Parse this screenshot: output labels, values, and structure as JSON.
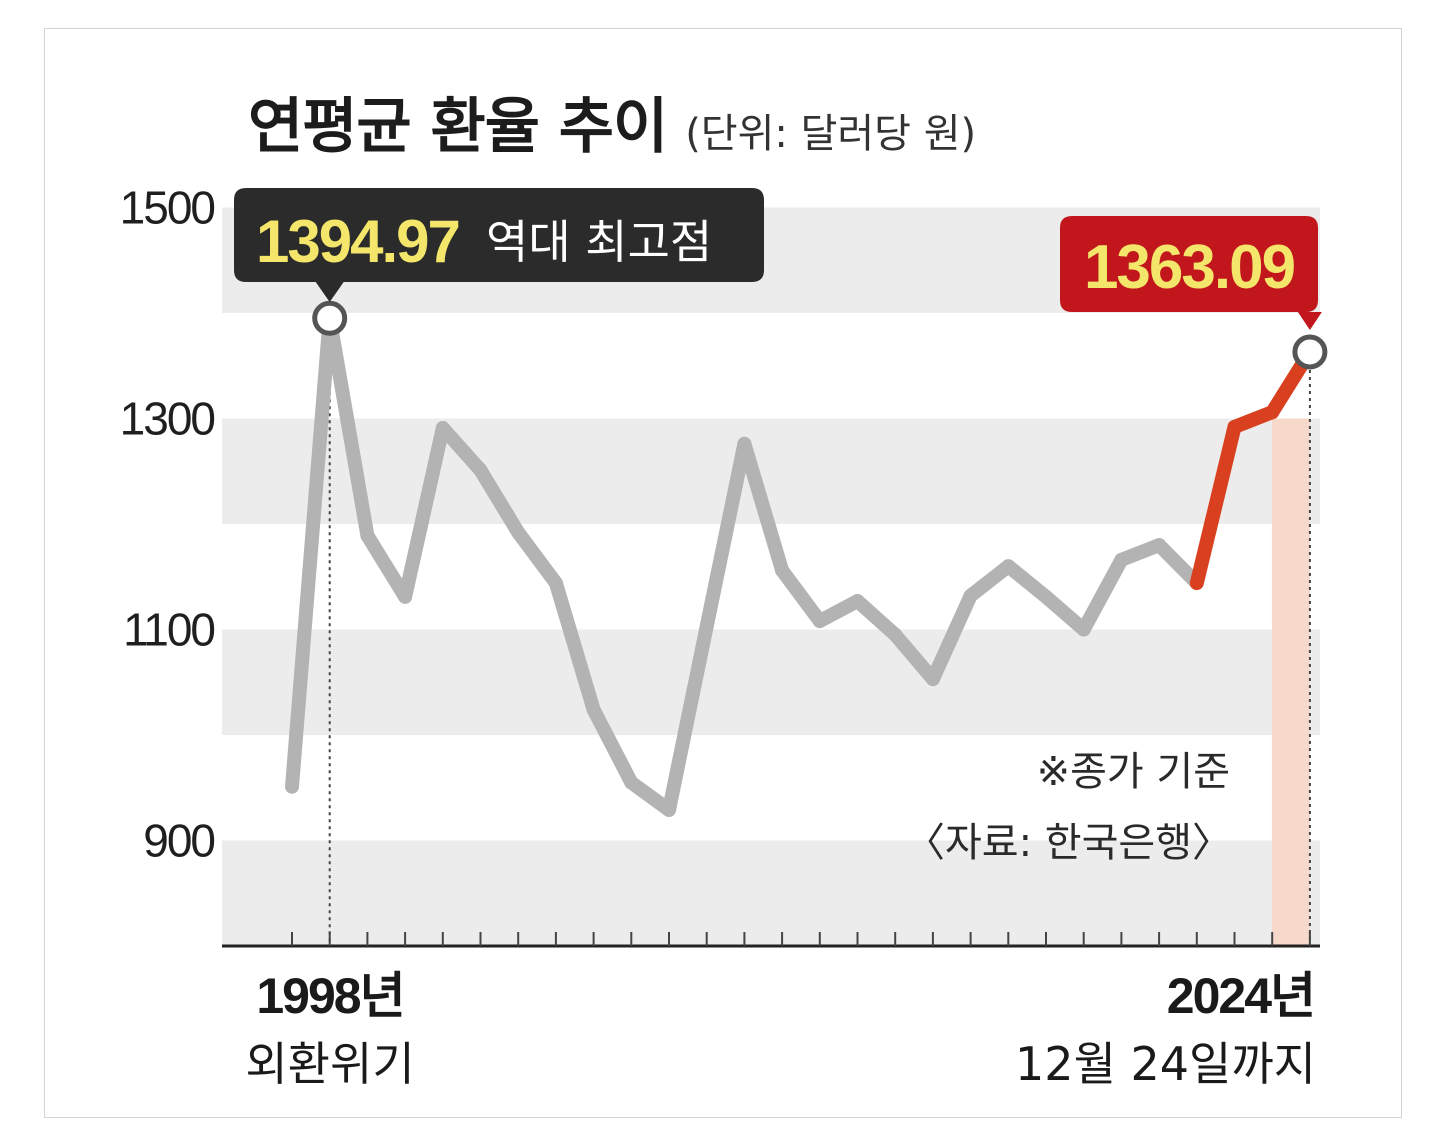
{
  "title": "연평균 환율 추이",
  "unit": "(단위: 달러당 원)",
  "peak_callout": {
    "value": "1394.97",
    "label": "역대 최고점"
  },
  "latest_callout": {
    "value": "1363.09"
  },
  "note": "※종가 기준",
  "source": "〈자료: 한국은행〉",
  "x_start": {
    "year_label": "1998년",
    "sub_label": "외환위기"
  },
  "x_end": {
    "year_label": "2024년",
    "sub_label": "12월 24일까지"
  },
  "colors": {
    "line": "#b3b3b3",
    "recent_line": "#d9401f",
    "peak_box": "#2b2b2b",
    "latest_box": "#c0161c",
    "callout_text": "#f4e66a",
    "band": "#ececec"
  },
  "chart_data": {
    "type": "line",
    "title": "연평균 환율 추이",
    "ylabel": "(단위: 달러당 원)",
    "ylim": [
      800,
      1500
    ],
    "yticks": [
      900,
      1100,
      1300,
      1500
    ],
    "grid": "horizontal bands",
    "x": [
      1997,
      1998,
      1999,
      2000,
      2001,
      2002,
      2003,
      2004,
      2005,
      2006,
      2007,
      2008,
      2009,
      2010,
      2011,
      2012,
      2013,
      2014,
      2015,
      2016,
      2017,
      2018,
      2019,
      2020,
      2021,
      2022,
      2023,
      2024
    ],
    "values": [
      951,
      1395,
      1189,
      1131,
      1291,
      1251,
      1192,
      1144,
      1024,
      955,
      929,
      1103,
      1276,
      1156,
      1108,
      1127,
      1095,
      1053,
      1132,
      1160,
      1131,
      1100,
      1166,
      1180,
      1144,
      1292,
      1306,
      1363.09
    ],
    "highlight_from_index": 24,
    "annotations": [
      {
        "x": 1998,
        "value": 1394.97,
        "text": "1394.97 역대 최고점"
      },
      {
        "x": 2024,
        "value": 1363.09,
        "text": "1363.09"
      }
    ]
  }
}
